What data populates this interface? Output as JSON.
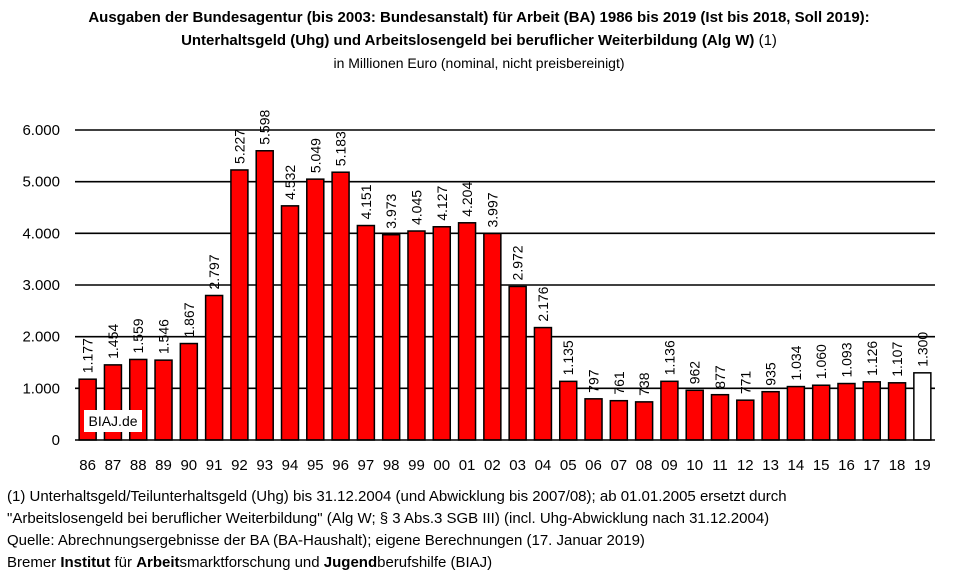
{
  "title_line1": "Ausgaben der Bundesagentur (bis 2003: Bundesanstalt) für Arbeit (BA) 1986 bis 2019 (Ist bis 2018, Soll 2019):",
  "title_line2_bold": "Unterhaltsgeld (Uhg) und Arbeitslosengeld bei beruflicher Weiterbildung (Alg W)",
  "title_line2_note": " (1)",
  "subtitle": "in Millionen Euro (nominal, nicht preisbereinigt)",
  "watermark": "BIAJ.de",
  "footnotes": {
    "line1": "(1) Unterhaltsgeld/Teilunterhaltsgeld  (Uhg) bis 31.12.2004 (und Abwicklung bis 2007/08); ab 01.01.2005 ersetzt durch",
    "line2": "\"Arbeitslosengeld bei beruflicher Weiterbildung\" (Alg W; § 3 Abs.3 SGB III) (incl. Uhg-Abwicklung nach 31.12.2004)",
    "line3": "Quelle: Abrechnungsergebnisse der BA (BA-Haushalt); eigene Berechnungen (17. Januar 2019)",
    "line4_parts": [
      "Bremer ",
      "Institut",
      " für ",
      "Arbeit",
      "smarktforschung und ",
      "Jugend",
      "berufshilfe (BIAJ)"
    ]
  },
  "colors": {
    "bar": "#ff0000",
    "bar_soll": "#ffffff",
    "outline": "#000000"
  },
  "chart_data": {
    "type": "bar",
    "categories": [
      "86",
      "87",
      "88",
      "89",
      "90",
      "91",
      "92",
      "93",
      "94",
      "95",
      "96",
      "97",
      "98",
      "99",
      "00",
      "01",
      "02",
      "03",
      "04",
      "05",
      "06",
      "07",
      "08",
      "09",
      "10",
      "11",
      "12",
      "13",
      "14",
      "15",
      "16",
      "17",
      "18",
      "19"
    ],
    "values": [
      1177,
      1454,
      1559,
      1546,
      1867,
      2797,
      5227,
      5598,
      4532,
      5049,
      5183,
      4151,
      3973,
      4045,
      4127,
      4204,
      3997,
      2972,
      2176,
      1135,
      797,
      761,
      738,
      1136,
      962,
      877,
      771,
      935,
      1034,
      1060,
      1093,
      1126,
      1107,
      1300
    ],
    "value_labels": [
      "1.177",
      "1.454",
      "1.559",
      "1.546",
      "1.867",
      "2.797",
      "5.227",
      "5.598",
      "4.532",
      "5.049",
      "5.183",
      "4.151",
      "3.973",
      "4.045",
      "4.127",
      "4.204",
      "3.997",
      "2.972",
      "2.176",
      "1.135",
      "797",
      "761",
      "738",
      "1.136",
      "962",
      "877",
      "771",
      "935",
      "1.034",
      "1.060",
      "1.093",
      "1.126",
      "1.107",
      "1.300"
    ],
    "soll_categories": [
      "19"
    ],
    "yticks": [
      0,
      1000,
      2000,
      3000,
      4000,
      5000,
      6000
    ],
    "ytick_labels": [
      "0",
      "1.000",
      "2.000",
      "3.000",
      "4.000",
      "5.000",
      "6.000"
    ],
    "ylim": [
      0,
      6000
    ],
    "grid": true
  }
}
